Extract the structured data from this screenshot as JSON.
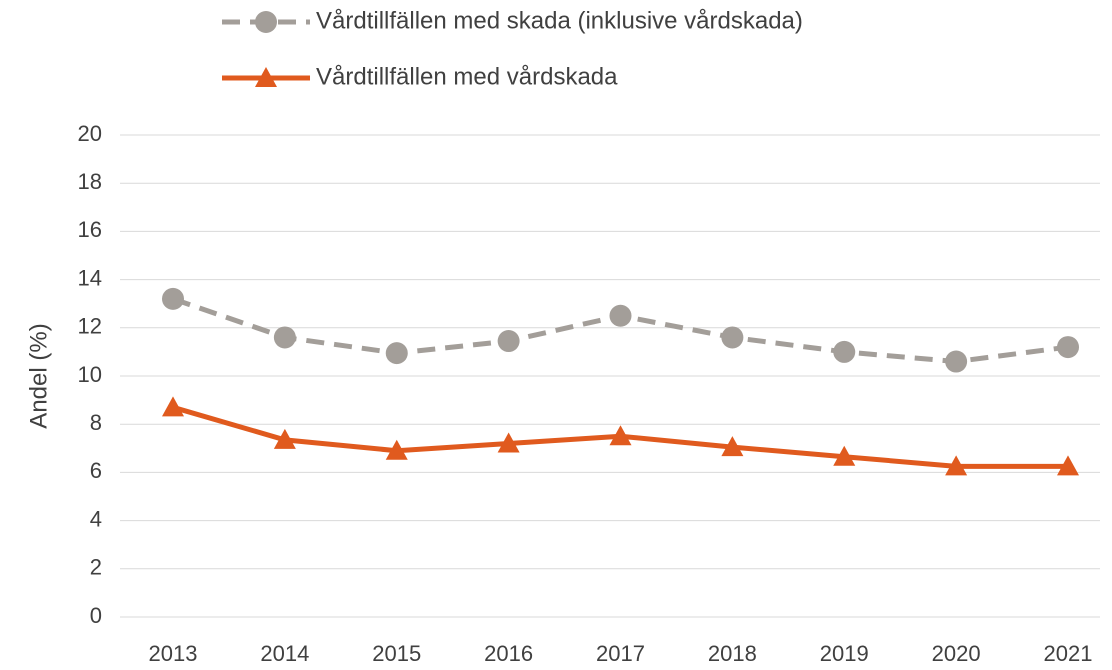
{
  "chart_data": {
    "type": "line",
    "y_label": "Andel (%)",
    "categories": [
      "2013",
      "2014",
      "2015",
      "2016",
      "2017",
      "2018",
      "2019",
      "2020",
      "2021"
    ],
    "series": [
      {
        "name": "Vårdtillfällen med skada (inklusive vårdskada)",
        "color": "#a39e99",
        "dashed": true,
        "marker": "circle",
        "values": [
          13.2,
          11.6,
          10.95,
          11.45,
          12.5,
          11.6,
          11.0,
          10.6,
          11.2
        ]
      },
      {
        "name": "Vårdtillfällen med vårdskada",
        "color": "#e05a1e",
        "dashed": false,
        "marker": "triangle",
        "values": [
          8.7,
          7.35,
          6.9,
          7.2,
          7.5,
          7.05,
          6.65,
          6.25,
          6.25
        ]
      }
    ],
    "ylim": [
      0,
      20
    ],
    "yticks": [
      0,
      2,
      4,
      6,
      8,
      10,
      12,
      14,
      16,
      18,
      20
    ],
    "grid": true
  }
}
